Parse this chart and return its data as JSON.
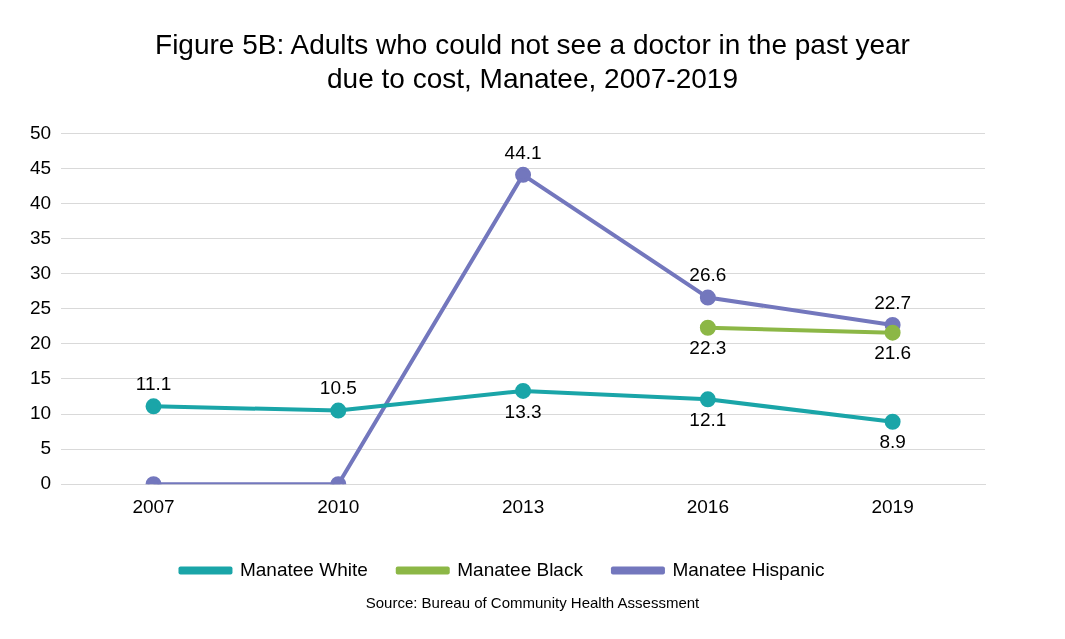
{
  "chart_data": {
    "type": "line",
    "title": "Figure 5B: Adults who could not see a doctor in the past year due to cost, Manatee, 2007-2019",
    "categories": [
      "2007",
      "2010",
      "2013",
      "2016",
      "2019"
    ],
    "series": [
      {
        "name": "Manatee White",
        "color": "#1aa5a8",
        "values": [
          11.1,
          10.5,
          13.3,
          12.1,
          8.9
        ],
        "value_labels": [
          "11.1",
          "10.5",
          "13.3",
          "12.1",
          "8.9"
        ]
      },
      {
        "name": "Manatee Black",
        "color": "#8cb746",
        "values": [
          null,
          null,
          null,
          22.3,
          21.6
        ],
        "value_labels": [
          null,
          null,
          null,
          "22.3",
          "21.6"
        ]
      },
      {
        "name": "Manatee Hispanic",
        "color": "#7377bd",
        "values": [
          0,
          0,
          44.1,
          26.6,
          22.7
        ],
        "value_labels": [
          null,
          null,
          "44.1",
          "26.6",
          "22.7"
        ]
      }
    ],
    "ylim": [
      0,
      50
    ],
    "yticks": [
      0,
      5,
      10,
      15,
      20,
      25,
      30,
      35,
      40,
      45,
      50
    ],
    "grid": "y",
    "legend": "bottom",
    "marker": "circle",
    "line_style": "solid",
    "annotations": [
      "Source: Bureau of Community Health Assessment"
    ]
  }
}
